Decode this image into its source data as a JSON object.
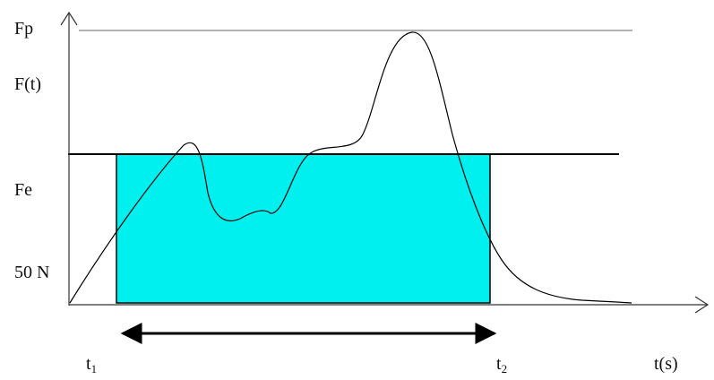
{
  "labels": {
    "fp": "Fp",
    "ft": "F(t)",
    "fe": "Fe",
    "n50": "50 N",
    "t1": "t",
    "t1_sub": "1",
    "t2": "t",
    "t2_sub": "2",
    "ts": "t(s)"
  },
  "colors": {
    "rectangle_fill": "#00f0f0",
    "axis": "#333333",
    "fp_line": "#999999",
    "fe_line": "#000000",
    "curve": "#000000"
  }
}
